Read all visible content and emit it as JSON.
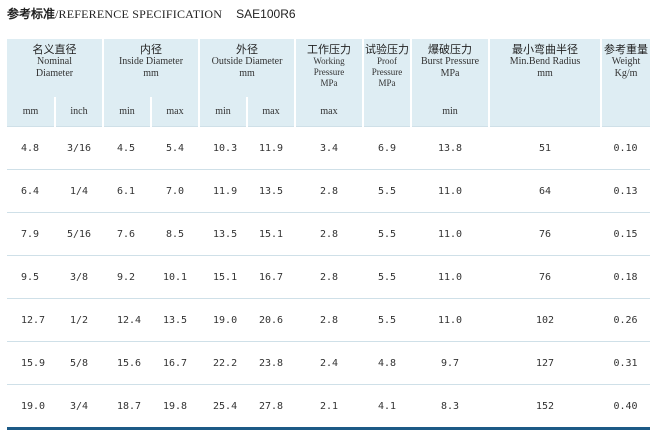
{
  "title": {
    "zh": "参考标准",
    "en": "/REFERENCE SPECIFICATION",
    "standard": "SAE100R6"
  },
  "headers": {
    "nominal": {
      "zh": "名义直径",
      "en1": "Nominal",
      "en2": "Diameter"
    },
    "inside": {
      "zh": "内径",
      "en1": "Inside  Diameter",
      "en2": "mm"
    },
    "outside": {
      "zh": "外径",
      "en1": "Outside Diameter",
      "en2": "mm"
    },
    "working": {
      "zh": "工作压力",
      "en1": "Working",
      "en2": "Pressure",
      "en3": "MPa"
    },
    "proof": {
      "zh": "试验压力",
      "en1": "Proof",
      "en2": "Pressure",
      "en3": "MPa"
    },
    "burst": {
      "zh": "爆破压力",
      "en1": "Burst Pressure",
      "en2": "MPa"
    },
    "bend": {
      "zh": "最小弯曲半径",
      "en1": "Min.Bend Radius",
      "en2": "mm"
    },
    "weight": {
      "zh": "参考重量",
      "en1": "Weight",
      "en2": "Kg/m"
    }
  },
  "subheaders": {
    "nom_mm": "mm",
    "nom_inch": "inch",
    "id_min": "min",
    "id_max": "max",
    "od_min": "min",
    "od_max": "max",
    "wp": "max",
    "bp": "min"
  },
  "rows": [
    {
      "mm": "4.8",
      "inch": "3/16",
      "id_min": "4.5",
      "id_max": "5.4",
      "od_min": "10.3",
      "od_max": "11.9",
      "wp": "3.4",
      "pp": "6.9",
      "bp": "13.8",
      "bend": "51",
      "weight": "0.10"
    },
    {
      "mm": "6.4",
      "inch": "1/4",
      "id_min": "6.1",
      "id_max": "7.0",
      "od_min": "11.9",
      "od_max": "13.5",
      "wp": "2.8",
      "pp": "5.5",
      "bp": "11.0",
      "bend": "64",
      "weight": "0.13"
    },
    {
      "mm": "7.9",
      "inch": "5/16",
      "id_min": "7.6",
      "id_max": "8.5",
      "od_min": "13.5",
      "od_max": "15.1",
      "wp": "2.8",
      "pp": "5.5",
      "bp": "11.0",
      "bend": "76",
      "weight": "0.15"
    },
    {
      "mm": "9.5",
      "inch": "3/8",
      "id_min": "9.2",
      "id_max": "10.1",
      "od_min": "15.1",
      "od_max": "16.7",
      "wp": "2.8",
      "pp": "5.5",
      "bp": "11.0",
      "bend": "76",
      "weight": "0.18"
    },
    {
      "mm": "12.7",
      "inch": "1/2",
      "id_min": "12.4",
      "id_max": "13.5",
      "od_min": "19.0",
      "od_max": "20.6",
      "wp": "2.8",
      "pp": "5.5",
      "bp": "11.0",
      "bend": "102",
      "weight": "0.26"
    },
    {
      "mm": "15.9",
      "inch": "5/8",
      "id_min": "15.6",
      "id_max": "16.7",
      "od_min": "22.2",
      "od_max": "23.8",
      "wp": "2.4",
      "pp": "4.8",
      "bp": "9.7",
      "bend": "127",
      "weight": "0.31"
    },
    {
      "mm": "19.0",
      "inch": "3/4",
      "id_min": "18.7",
      "id_max": "19.8",
      "od_min": "25.4",
      "od_max": "27.8",
      "wp": "2.1",
      "pp": "4.1",
      "bp": "8.3",
      "bend": "152",
      "weight": "0.40"
    }
  ]
}
